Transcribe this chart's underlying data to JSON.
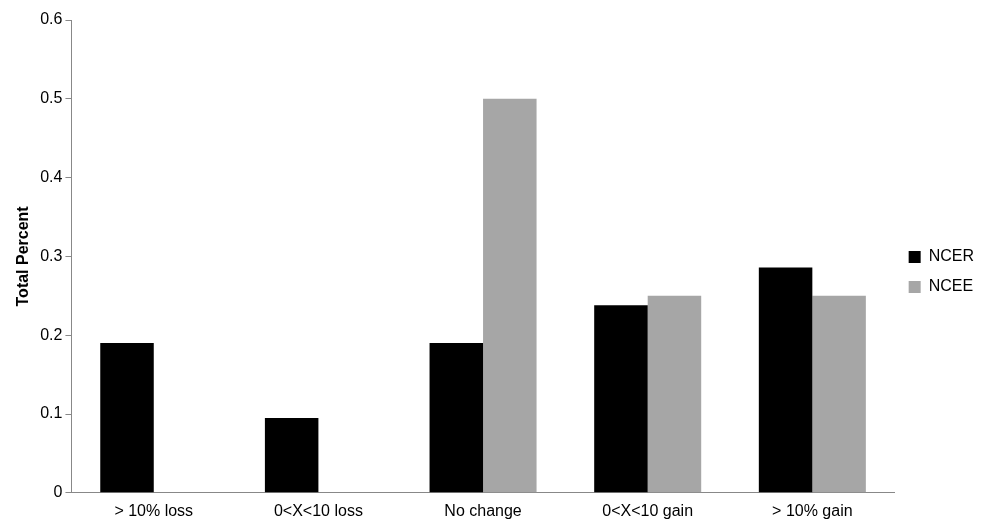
{
  "chart_data": {
    "type": "bar",
    "ylabel": "Total Percent",
    "categories": [
      "> 10% loss",
      "0<X<10 loss",
      "No change",
      "0<X<10 gain",
      "> 10% gain"
    ],
    "series": [
      {
        "name": "NCER",
        "color": "#000000",
        "values": [
          0.19,
          0.095,
          0.19,
          0.238,
          0.286
        ]
      },
      {
        "name": "NCEE",
        "color": "#a6a6a6",
        "values": [
          0,
          0,
          0.5,
          0.25,
          0.25
        ]
      }
    ],
    "ylim": [
      0,
      0.6
    ],
    "yticks": [
      0,
      0.1,
      0.2,
      0.3,
      0.4,
      0.5,
      0.6
    ],
    "grid": false,
    "legend": "right"
  }
}
